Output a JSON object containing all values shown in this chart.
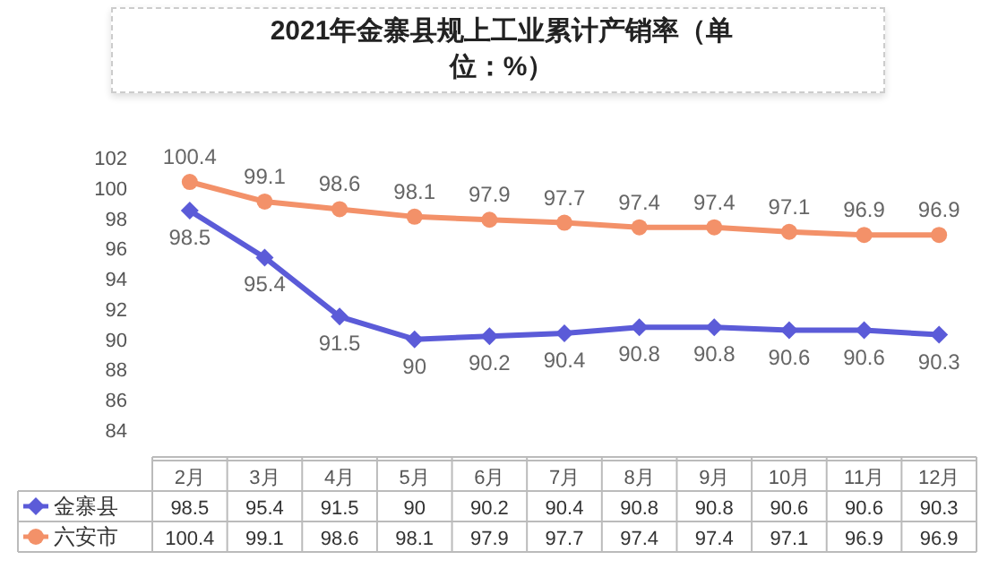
{
  "chart_data": {
    "type": "line",
    "title": "2021年金寨县规上工业累计产销率（单位：%）",
    "categories": [
      "2月",
      "3月",
      "4月",
      "5月",
      "6月",
      "7月",
      "8月",
      "9月",
      "10月",
      "11月",
      "12月"
    ],
    "series": [
      {
        "name": "金寨县",
        "color": "#5b5bd8",
        "marker": "diamond",
        "values": [
          98.5,
          95.4,
          91.5,
          90,
          90.2,
          90.4,
          90.8,
          90.8,
          90.6,
          90.6,
          90.3
        ]
      },
      {
        "name": "六安市",
        "color": "#f39169",
        "marker": "circle",
        "values": [
          100.4,
          99.1,
          98.6,
          98.1,
          97.9,
          97.7,
          97.4,
          97.4,
          97.1,
          96.9,
          96.9
        ]
      }
    ],
    "annotations": [
      {
        "text": "98.5",
        "x": "2月",
        "y": 98.5
      },
      {
        "text": "95.4",
        "x": "3月",
        "y": 95.4
      },
      {
        "text": "91.5",
        "x": "4月",
        "y": 91.5
      },
      {
        "text": "90",
        "x": "5月",
        "y": 90
      },
      {
        "text": "90.2",
        "x": "6月",
        "y": 90.2
      },
      {
        "text": "90.4",
        "x": "7月",
        "y": 90.4
      },
      {
        "text": "90.8",
        "x": "8月",
        "y": 90.8
      },
      {
        "text": "90.8",
        "x": "9月",
        "y": 90.8
      },
      {
        "text": "90.6",
        "x": "10月",
        "y": 90.6
      },
      {
        "text": "90.6",
        "x": "11月",
        "y": 90.6
      },
      {
        "text": "90.3",
        "x": "12月",
        "y": 90.3
      },
      {
        "text": "100.4",
        "x": "2月",
        "y": 100.4
      },
      {
        "text": "99.1",
        "x": "3月",
        "y": 99.1
      },
      {
        "text": "98.6",
        "x": "4月",
        "y": 98.6
      },
      {
        "text": "98.1",
        "x": "5月",
        "y": 98.1
      },
      {
        "text": "97.9",
        "x": "6月",
        "y": 97.9
      },
      {
        "text": "97.7",
        "x": "7月",
        "y": 97.7
      },
      {
        "text": "97.4",
        "x": "8月",
        "y": 97.4
      },
      {
        "text": "97.4",
        "x": "9月",
        "y": 97.4
      },
      {
        "text": "97.1",
        "x": "10月",
        "y": 97.1
      },
      {
        "text": "96.9",
        "x": "11月",
        "y": 96.9
      },
      {
        "text": "96.9",
        "x": "12月",
        "y": 96.9
      }
    ],
    "ylim": [
      84,
      102
    ],
    "yticks": [
      84,
      86,
      88,
      90,
      92,
      94,
      96,
      98,
      100,
      102
    ],
    "data_labels": true,
    "legend": "bottom",
    "grid": false
  }
}
